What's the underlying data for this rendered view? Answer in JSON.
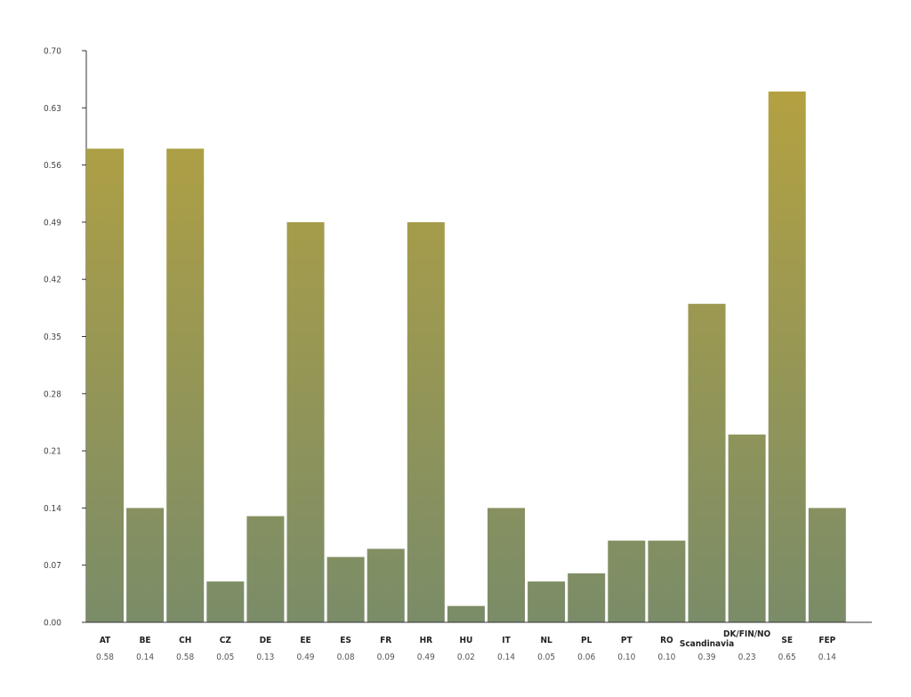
{
  "chart_data": {
    "type": "bar",
    "title": "",
    "xlabel": "",
    "ylabel": "",
    "categories": [
      "AT",
      "BE",
      "CH",
      "CZ",
      "DE",
      "EE",
      "ES",
      "FR",
      "HR",
      "HU",
      "IT",
      "NL",
      "PL",
      "PT",
      "RO",
      "Scandinavia",
      "DK/FIN/NO",
      "SE",
      "FEP"
    ],
    "values": [
      0.58,
      0.14,
      0.58,
      0.05,
      0.13,
      0.49,
      0.08,
      0.09,
      0.49,
      0.02,
      0.14,
      0.05,
      0.06,
      0.1,
      0.1,
      0.39,
      0.23,
      0.65,
      0.14
    ],
    "value_labels": [
      "0.58",
      "0.14",
      "0.58",
      "0.05",
      "0.13",
      "0.49",
      "0.08",
      "0.09",
      "0.49",
      "0.02",
      "0.14",
      "0.05",
      "0.06",
      "0.10",
      "0.10",
      "0.39",
      "0.23",
      "0.65",
      "0.14"
    ],
    "y_ticks": [
      "0.00",
      "0.07",
      "0.14",
      "0.21",
      "0.28",
      "0.35",
      "0.42",
      "0.49",
      "0.56",
      "0.63",
      "0.70"
    ],
    "ylim": [
      0,
      0.7
    ],
    "grid": false,
    "legend": "none",
    "colors": {
      "bar_top": "#b8a33e",
      "bar_bottom": "#7a8c68",
      "axis": "#333333"
    }
  }
}
